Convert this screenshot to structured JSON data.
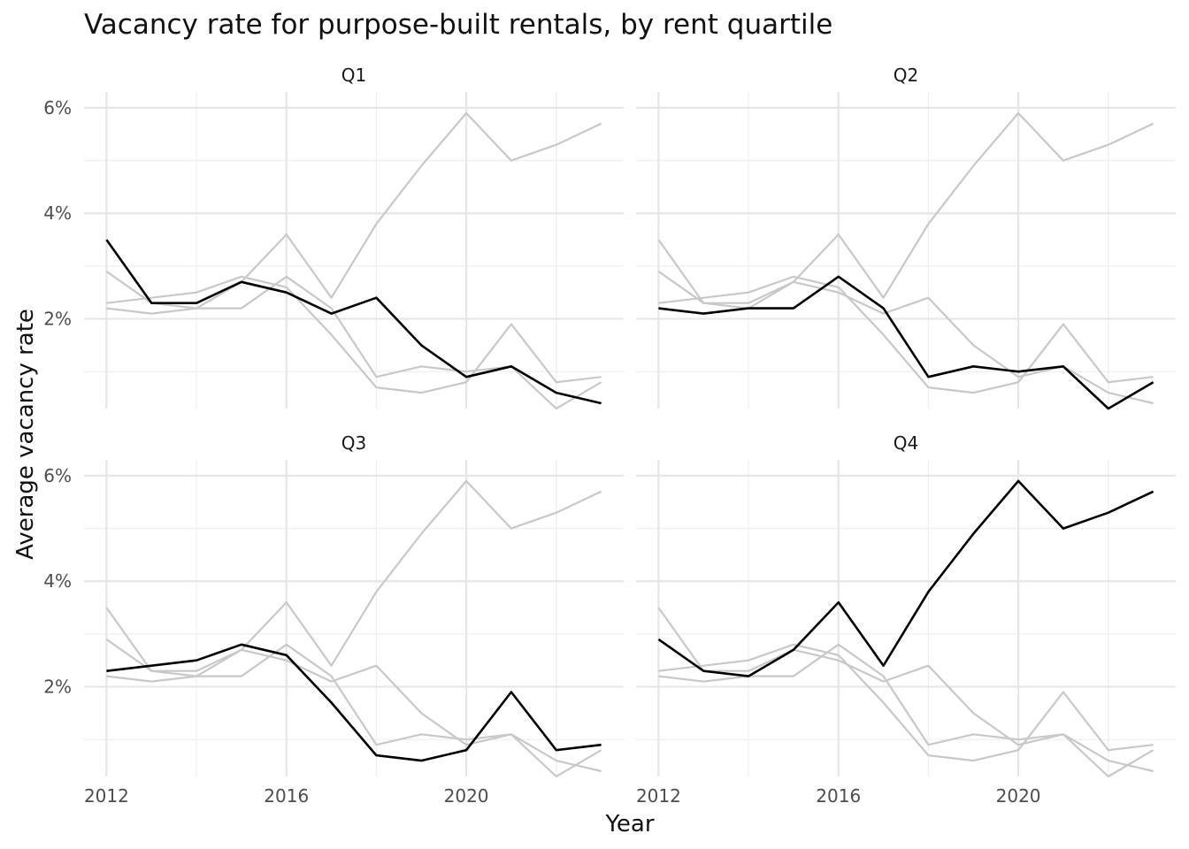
{
  "chart_data": {
    "type": "line",
    "title": "Vacancy rate for purpose-built rentals, by rent quartile",
    "xlabel": "Year",
    "ylabel": "Average vacancy rate",
    "x": [
      2012,
      2013,
      2014,
      2015,
      2016,
      2017,
      2018,
      2019,
      2020,
      2021,
      2022,
      2023
    ],
    "x_ticks": [
      2012,
      2016,
      2020
    ],
    "x_tick_labels": [
      "2012",
      "2016",
      "2020"
    ],
    "xlim": [
      2011.5,
      2023.5
    ],
    "y_ticks": [
      2,
      4,
      6
    ],
    "y_tick_labels": [
      "2%",
      "4%",
      "6%"
    ],
    "ylim": [
      0.3,
      6.0
    ],
    "grid": true,
    "facet_labels": [
      "Q1",
      "Q2",
      "Q3",
      "Q4"
    ],
    "series": [
      {
        "values": [
          3.5,
          2.3,
          2.3,
          2.7,
          2.5,
          2.1,
          2.4,
          1.5,
          0.9,
          1.1,
          0.6,
          0.4
        ]
      },
      {
        "values": [
          2.2,
          2.1,
          2.2,
          2.2,
          2.8,
          2.2,
          0.9,
          1.1,
          1.0,
          1.1,
          0.3,
          0.8
        ]
      },
      {
        "values": [
          2.3,
          2.4,
          2.5,
          2.8,
          2.6,
          1.7,
          0.7,
          0.6,
          0.8,
          1.9,
          0.8,
          0.9
        ]
      },
      {
        "values": [
          2.9,
          2.3,
          2.2,
          2.7,
          3.6,
          2.4,
          3.8,
          4.9,
          5.9,
          5.0,
          5.3,
          5.7
        ]
      }
    ]
  }
}
